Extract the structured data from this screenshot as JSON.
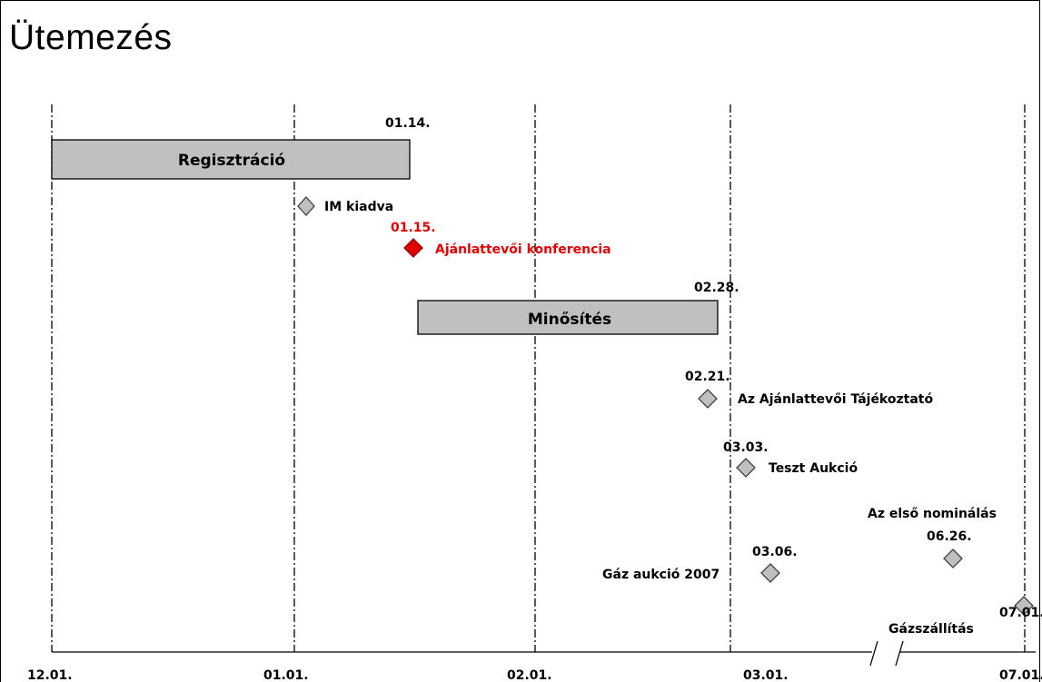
{
  "title": "Ütemezés",
  "axis_labels": [
    "12.01.",
    "01.01.",
    "02.01.",
    "03.01.",
    "07.01."
  ],
  "bars": [
    {
      "label": "Regisztráció",
      "end_label": "01.14."
    },
    {
      "label": "Minősítés",
      "end_label": "02.28."
    }
  ],
  "milestones": [
    {
      "label": "IM kiadva",
      "date": "",
      "highlight": false
    },
    {
      "label": "Ajánlattevői konferencia",
      "date": "01.15.",
      "highlight": true
    },
    {
      "label": "Az Ajánlattevői Tájékoztató",
      "date": "02.21.",
      "highlight": false
    },
    {
      "label": "Teszt Aukció",
      "date": "03.03.",
      "highlight": false
    },
    {
      "label": "Gáz aukció 2007",
      "date": "03.06.",
      "highlight": false
    },
    {
      "label": "Az első nominálás",
      "date": "06.26.",
      "highlight": false
    },
    {
      "label": "Gázszállítás",
      "date": "07.01.",
      "highlight": false
    }
  ],
  "colors": {
    "bar_fill": "#c0c0c0",
    "diamond_fill": "#c0c0c0",
    "highlight": "#e00000"
  }
}
